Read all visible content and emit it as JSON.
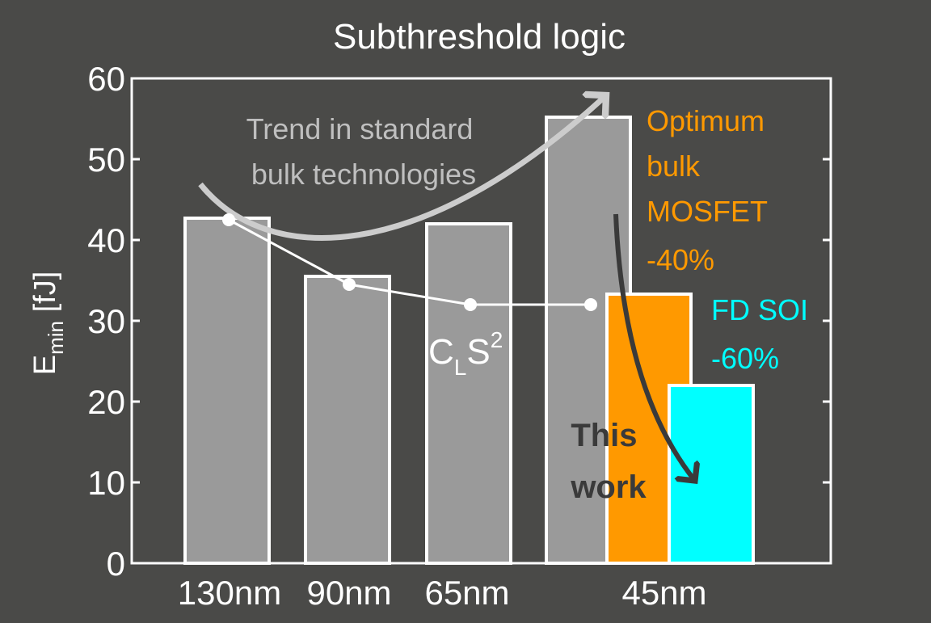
{
  "colors": {
    "background": "#4a4a48",
    "axes": "#ffffff",
    "bulk_bar": "#9a9a9a",
    "optimum_bar": "#ff9900",
    "fdsoi_bar": "#00ffff",
    "trend_arrow": "#cccccc",
    "this_work_arrow": "#3a3a3a",
    "cls2_line": "#ffffff",
    "tick_text": "#ffffff",
    "trend_text": "#bfbfbf",
    "this_work_text": "#3a3a3a"
  },
  "chart_data": {
    "type": "bar",
    "title": "Subthreshold logic",
    "ylabel": {
      "main": "E",
      "sub": "min",
      "unit": " [fJ]"
    },
    "xlabel": "",
    "ylim": [
      0,
      60
    ],
    "yticks": [
      0,
      10,
      20,
      30,
      40,
      50,
      60
    ],
    "grid": false,
    "categories": [
      "130nm",
      "90nm",
      "65nm",
      "45nm"
    ],
    "series": [
      {
        "key": "bulk",
        "values": [
          42.7,
          35.5,
          42,
          55.2
        ]
      },
      {
        "key": "optimum",
        "name": "Optimum bulk MOSFET",
        "values": [
          null,
          null,
          null,
          33.3
        ]
      },
      {
        "key": "fdsoi",
        "name": "FD SOI",
        "values": [
          null,
          null,
          null,
          22
        ]
      }
    ],
    "cls2": {
      "label_main": "C",
      "label_sub": "L",
      "label_rest": "S",
      "label_sup": "2",
      "values": [
        42.5,
        34.5,
        32,
        32
      ]
    },
    "annotations": {
      "trend": [
        "Trend in standard",
        "bulk technologies"
      ],
      "optimum": [
        "Optimum",
        "bulk",
        "MOSFET",
        "-40%"
      ],
      "fdsoi": [
        "FD SOI",
        "-60%"
      ],
      "this_work": [
        "This",
        "work"
      ]
    }
  }
}
